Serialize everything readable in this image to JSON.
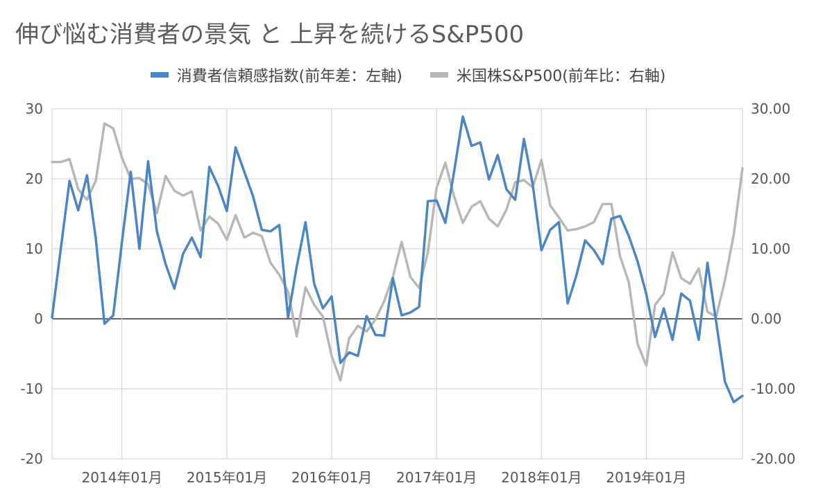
{
  "chart_data": {
    "type": "line",
    "title": "伸び悩む消費者の景気 と 上昇を続けるS&P500",
    "x": [
      "2013-05",
      "2013-06",
      "2013-07",
      "2013-08",
      "2013-09",
      "2013-10",
      "2013-11",
      "2013-12",
      "2014-01",
      "2014-02",
      "2014-03",
      "2014-04",
      "2014-05",
      "2014-06",
      "2014-07",
      "2014-08",
      "2014-09",
      "2014-10",
      "2014-11",
      "2014-12",
      "2015-01",
      "2015-02",
      "2015-03",
      "2015-04",
      "2015-05",
      "2015-06",
      "2015-07",
      "2015-08",
      "2015-09",
      "2015-10",
      "2015-11",
      "2015-12",
      "2016-01",
      "2016-02",
      "2016-03",
      "2016-04",
      "2016-05",
      "2016-06",
      "2016-07",
      "2016-08",
      "2016-09",
      "2016-10",
      "2016-11",
      "2016-12",
      "2017-01",
      "2017-02",
      "2017-03",
      "2017-04",
      "2017-05",
      "2017-06",
      "2017-07",
      "2017-08",
      "2017-09",
      "2017-10",
      "2017-11",
      "2017-12",
      "2018-01",
      "2018-02",
      "2018-03",
      "2018-04",
      "2018-05",
      "2018-06",
      "2018-07",
      "2018-08",
      "2018-09",
      "2018-10",
      "2018-11",
      "2018-12",
      "2019-01",
      "2019-02",
      "2019-03",
      "2019-04",
      "2019-05",
      "2019-06",
      "2019-07",
      "2019-08",
      "2019-09",
      "2019-10",
      "2019-11",
      "2019-12"
    ],
    "x_ticks": [
      "2014年01月",
      "2015年01月",
      "2016年01月",
      "2017年01月",
      "2018年01月",
      "2019年01月"
    ],
    "series": [
      {
        "name": "消費者信頼感指数(前年差：左軸)",
        "axis": "left",
        "color": "#4a86c4",
        "values": [
          0.2,
          10.0,
          19.7,
          15.5,
          20.5,
          11.5,
          -0.7,
          0.5,
          11.0,
          21.0,
          10.0,
          22.5,
          12.5,
          7.8,
          4.3,
          9.3,
          11.6,
          8.8,
          21.7,
          19.0,
          15.4,
          24.5,
          21.0,
          17.5,
          12.7,
          12.5,
          13.4,
          0.2,
          7.5,
          13.8,
          5.0,
          1.5,
          3.2,
          -6.3,
          -4.8,
          -5.3,
          0.4,
          -2.3,
          -2.4,
          5.8,
          0.5,
          0.9,
          1.7,
          16.8,
          16.9,
          13.7,
          21.0,
          28.9,
          24.7,
          25.2,
          19.9,
          23.4,
          18.5,
          17.0,
          25.7,
          19.2,
          9.8,
          12.7,
          13.8,
          2.2,
          6.2,
          11.2,
          9.8,
          7.8,
          14.3,
          14.7,
          11.8,
          8.2,
          3.5,
          -2.6,
          1.5,
          -3.0,
          3.6,
          2.6,
          -3.0,
          8.0,
          -0.5,
          -9.0,
          -11.9,
          -11.0
        ]
      },
      {
        "name": "米国株S&P500(前年比：右軸)",
        "axis": "right",
        "color": "#b7b7b7",
        "values": [
          22.4,
          22.4,
          22.8,
          18.5,
          17.0,
          19.7,
          27.9,
          27.2,
          23.0,
          20.0,
          20.1,
          19.2,
          15.1,
          20.4,
          18.3,
          17.6,
          18.2,
          12.6,
          14.6,
          13.6,
          11.3,
          14.8,
          11.6,
          12.3,
          11.8,
          8.0,
          6.3,
          3.9,
          -2.5,
          4.5,
          2.0,
          0.3,
          -5.3,
          -8.8,
          -2.8,
          -1.0,
          -1.8,
          -0.1,
          2.5,
          6.0,
          11.0,
          6.0,
          4.4,
          9.5,
          18.7,
          22.3,
          17.5,
          13.7,
          16.0,
          16.8,
          14.3,
          13.2,
          15.6,
          19.5,
          19.8,
          18.8,
          22.7,
          16.2,
          14.5,
          12.6,
          12.8,
          13.2,
          13.8,
          16.4,
          16.4,
          8.9,
          5.2,
          -3.6,
          -6.7,
          2.0,
          3.6,
          9.5,
          5.8,
          5.0,
          7.2,
          1.0,
          0.3,
          5.5,
          12.0,
          21.5
        ]
      }
    ],
    "left_axis": {
      "ylim": [
        -20,
        30
      ],
      "ticks": [
        "30",
        "20",
        "10",
        "0",
        "-10",
        "-20"
      ]
    },
    "right_axis": {
      "ylim": [
        -20,
        30
      ],
      "ticks": [
        "30.00",
        "20.00",
        "10.00",
        "0.00",
        "-10.00",
        "-20.00"
      ]
    },
    "legend_position": "top",
    "grid": "vertical-and-horizontal"
  }
}
